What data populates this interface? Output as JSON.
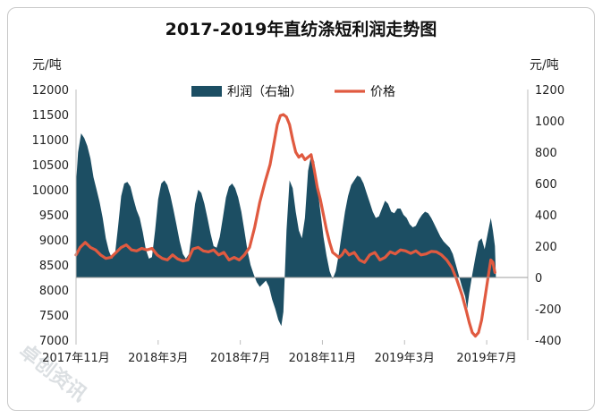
{
  "chart_data": {
    "type": "area+line",
    "title": "2017-2019年直纺涤短利润走势图",
    "y_left": {
      "label": "元/吨",
      "range": [
        7000,
        12000
      ],
      "ticks": [
        12000,
        11500,
        11000,
        10500,
        10000,
        9500,
        9000,
        8500,
        8000,
        7500,
        7000
      ]
    },
    "y_right": {
      "label": "元/吨",
      "range": [
        -400,
        1200
      ],
      "ticks": [
        1200,
        1000,
        800,
        600,
        400,
        200,
        0,
        -200,
        -400
      ]
    },
    "x": {
      "range": [
        0,
        22
      ],
      "ticks": [
        {
          "label": "2017年11月",
          "t": 0
        },
        {
          "label": "2018年3月",
          "t": 4
        },
        {
          "label": "2018年7月",
          "t": 8
        },
        {
          "label": "2018年11月",
          "t": 12
        },
        {
          "label": "2019年3月",
          "t": 16
        },
        {
          "label": "2019年7月",
          "t": 20
        }
      ]
    },
    "legend": {
      "placement": "top-center",
      "items": [
        {
          "name": "利润（右轴）",
          "color": "#1c4e63",
          "kind": "area"
        },
        {
          "name": "价格",
          "color": "#e05a40",
          "kind": "line"
        }
      ]
    },
    "series": [
      {
        "name": "利润（右轴）",
        "axis": "right",
        "type": "area",
        "color": "#1c4e63",
        "points": [
          [
            0.0,
            600
          ],
          [
            0.1,
            800
          ],
          [
            0.25,
            920
          ],
          [
            0.4,
            890
          ],
          [
            0.55,
            840
          ],
          [
            0.7,
            760
          ],
          [
            0.85,
            640
          ],
          [
            1.0,
            560
          ],
          [
            1.15,
            480
          ],
          [
            1.3,
            380
          ],
          [
            1.45,
            250
          ],
          [
            1.6,
            170
          ],
          [
            1.75,
            120
          ],
          [
            1.9,
            150
          ],
          [
            2.05,
            330
          ],
          [
            2.2,
            520
          ],
          [
            2.35,
            600
          ],
          [
            2.5,
            610
          ],
          [
            2.65,
            580
          ],
          [
            2.8,
            500
          ],
          [
            2.95,
            430
          ],
          [
            3.1,
            380
          ],
          [
            3.25,
            290
          ],
          [
            3.4,
            180
          ],
          [
            3.55,
            120
          ],
          [
            3.7,
            130
          ],
          [
            3.85,
            300
          ],
          [
            4.0,
            500
          ],
          [
            4.15,
            600
          ],
          [
            4.3,
            620
          ],
          [
            4.45,
            590
          ],
          [
            4.6,
            520
          ],
          [
            4.75,
            430
          ],
          [
            4.9,
            330
          ],
          [
            5.05,
            230
          ],
          [
            5.2,
            150
          ],
          [
            5.35,
            120
          ],
          [
            5.5,
            150
          ],
          [
            5.65,
            300
          ],
          [
            5.8,
            470
          ],
          [
            5.95,
            560
          ],
          [
            6.1,
            540
          ],
          [
            6.25,
            470
          ],
          [
            6.4,
            380
          ],
          [
            6.55,
            280
          ],
          [
            6.7,
            200
          ],
          [
            6.85,
            190
          ],
          [
            7.0,
            260
          ],
          [
            7.15,
            380
          ],
          [
            7.3,
            510
          ],
          [
            7.45,
            580
          ],
          [
            7.6,
            600
          ],
          [
            7.75,
            570
          ],
          [
            7.9,
            510
          ],
          [
            8.05,
            420
          ],
          [
            8.2,
            300
          ],
          [
            8.35,
            170
          ],
          [
            8.5,
            80
          ],
          [
            8.65,
            20
          ],
          [
            8.8,
            -30
          ],
          [
            8.95,
            -60
          ],
          [
            9.1,
            -40
          ],
          [
            9.25,
            -20
          ],
          [
            9.4,
            -60
          ],
          [
            9.55,
            -140
          ],
          [
            9.7,
            -200
          ],
          [
            9.85,
            -270
          ],
          [
            10.0,
            -310
          ],
          [
            10.1,
            -220
          ],
          [
            10.25,
            300
          ],
          [
            10.4,
            620
          ],
          [
            10.55,
            570
          ],
          [
            10.7,
            420
          ],
          [
            10.85,
            300
          ],
          [
            11.0,
            250
          ],
          [
            11.15,
            380
          ],
          [
            11.3,
            680
          ],
          [
            11.45,
            780
          ],
          [
            11.6,
            740
          ],
          [
            11.75,
            580
          ],
          [
            11.9,
            420
          ],
          [
            12.05,
            260
          ],
          [
            12.2,
            140
          ],
          [
            12.35,
            40
          ],
          [
            12.5,
            -10
          ],
          [
            12.65,
            40
          ],
          [
            12.8,
            150
          ],
          [
            12.95,
            290
          ],
          [
            13.1,
            420
          ],
          [
            13.25,
            520
          ],
          [
            13.4,
            590
          ],
          [
            13.55,
            620
          ],
          [
            13.7,
            650
          ],
          [
            13.85,
            640
          ],
          [
            14.0,
            600
          ],
          [
            14.15,
            540
          ],
          [
            14.3,
            480
          ],
          [
            14.45,
            420
          ],
          [
            14.6,
            380
          ],
          [
            14.75,
            390
          ],
          [
            14.9,
            440
          ],
          [
            15.05,
            490
          ],
          [
            15.2,
            470
          ],
          [
            15.35,
            420
          ],
          [
            15.5,
            410
          ],
          [
            15.65,
            440
          ],
          [
            15.8,
            440
          ],
          [
            15.95,
            400
          ],
          [
            16.1,
            380
          ],
          [
            16.25,
            340
          ],
          [
            16.4,
            320
          ],
          [
            16.55,
            330
          ],
          [
            16.7,
            370
          ],
          [
            16.85,
            400
          ],
          [
            17.0,
            420
          ],
          [
            17.15,
            410
          ],
          [
            17.3,
            380
          ],
          [
            17.45,
            340
          ],
          [
            17.6,
            300
          ],
          [
            17.75,
            260
          ],
          [
            17.9,
            230
          ],
          [
            18.05,
            210
          ],
          [
            18.2,
            190
          ],
          [
            18.35,
            150
          ],
          [
            18.5,
            80
          ],
          [
            18.65,
            10
          ],
          [
            18.8,
            -60
          ],
          [
            18.95,
            -120
          ],
          [
            19.05,
            -200
          ],
          [
            19.15,
            -100
          ],
          [
            19.3,
            20
          ],
          [
            19.45,
            130
          ],
          [
            19.6,
            230
          ],
          [
            19.75,
            250
          ],
          [
            19.9,
            180
          ],
          [
            20.05,
            280
          ],
          [
            20.2,
            380
          ],
          [
            20.3,
            300
          ],
          [
            20.4,
            200
          ],
          [
            20.45,
            0
          ]
        ]
      },
      {
        "name": "价格",
        "axis": "left",
        "type": "line",
        "color": "#e05a40",
        "points": [
          [
            0.0,
            8700
          ],
          [
            0.2,
            8850
          ],
          [
            0.45,
            8950
          ],
          [
            0.7,
            8850
          ],
          [
            0.95,
            8800
          ],
          [
            1.2,
            8700
          ],
          [
            1.45,
            8630
          ],
          [
            1.7,
            8650
          ],
          [
            1.95,
            8750
          ],
          [
            2.2,
            8850
          ],
          [
            2.45,
            8900
          ],
          [
            2.7,
            8800
          ],
          [
            2.95,
            8780
          ],
          [
            3.2,
            8830
          ],
          [
            3.45,
            8800
          ],
          [
            3.7,
            8830
          ],
          [
            3.95,
            8700
          ],
          [
            4.2,
            8630
          ],
          [
            4.45,
            8600
          ],
          [
            4.7,
            8700
          ],
          [
            4.95,
            8620
          ],
          [
            5.2,
            8580
          ],
          [
            5.45,
            8600
          ],
          [
            5.7,
            8820
          ],
          [
            5.95,
            8850
          ],
          [
            6.2,
            8780
          ],
          [
            6.45,
            8760
          ],
          [
            6.7,
            8800
          ],
          [
            6.95,
            8700
          ],
          [
            7.2,
            8750
          ],
          [
            7.45,
            8600
          ],
          [
            7.7,
            8650
          ],
          [
            7.95,
            8600
          ],
          [
            8.2,
            8700
          ],
          [
            8.45,
            8850
          ],
          [
            8.7,
            9250
          ],
          [
            8.95,
            9750
          ],
          [
            9.2,
            10150
          ],
          [
            9.45,
            10500
          ],
          [
            9.65,
            10950
          ],
          [
            9.8,
            11300
          ],
          [
            9.95,
            11480
          ],
          [
            10.1,
            11500
          ],
          [
            10.25,
            11450
          ],
          [
            10.4,
            11300
          ],
          [
            10.55,
            11000
          ],
          [
            10.7,
            10750
          ],
          [
            10.85,
            10650
          ],
          [
            11.0,
            10700
          ],
          [
            11.15,
            10600
          ],
          [
            11.3,
            10650
          ],
          [
            11.45,
            10700
          ],
          [
            11.6,
            10400
          ],
          [
            11.75,
            10050
          ],
          [
            11.9,
            9800
          ],
          [
            12.05,
            9500
          ],
          [
            12.2,
            9200
          ],
          [
            12.35,
            8950
          ],
          [
            12.5,
            8750
          ],
          [
            12.65,
            8700
          ],
          [
            12.8,
            8650
          ],
          [
            12.95,
            8700
          ],
          [
            13.1,
            8800
          ],
          [
            13.3,
            8700
          ],
          [
            13.55,
            8750
          ],
          [
            13.8,
            8600
          ],
          [
            14.05,
            8550
          ],
          [
            14.3,
            8700
          ],
          [
            14.55,
            8750
          ],
          [
            14.8,
            8600
          ],
          [
            15.05,
            8650
          ],
          [
            15.3,
            8760
          ],
          [
            15.55,
            8720
          ],
          [
            15.8,
            8800
          ],
          [
            16.05,
            8780
          ],
          [
            16.3,
            8730
          ],
          [
            16.55,
            8780
          ],
          [
            16.8,
            8700
          ],
          [
            17.05,
            8720
          ],
          [
            17.3,
            8770
          ],
          [
            17.55,
            8760
          ],
          [
            17.8,
            8700
          ],
          [
            18.05,
            8600
          ],
          [
            18.3,
            8450
          ],
          [
            18.55,
            8200
          ],
          [
            18.8,
            7900
          ],
          [
            19.0,
            7600
          ],
          [
            19.15,
            7350
          ],
          [
            19.3,
            7150
          ],
          [
            19.45,
            7080
          ],
          [
            19.6,
            7150
          ],
          [
            19.75,
            7400
          ],
          [
            19.9,
            7800
          ],
          [
            20.05,
            8200
          ],
          [
            20.2,
            8600
          ],
          [
            20.3,
            8550
          ],
          [
            20.4,
            8350
          ]
        ]
      }
    ]
  },
  "watermark": {
    "text": "卓创资讯"
  }
}
